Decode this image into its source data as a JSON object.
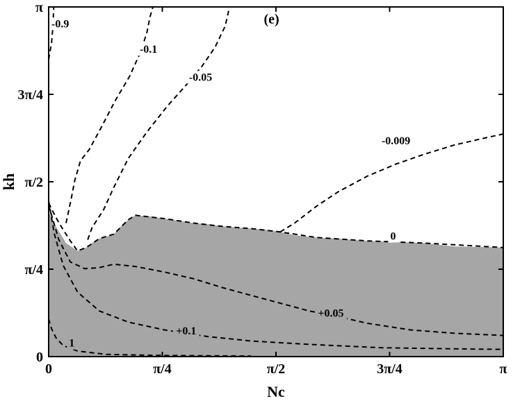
{
  "chart_data": {
    "type": "contour",
    "panel_label": "(e)",
    "xlabel": "Nc",
    "ylabel": "kh",
    "xlim": [
      0,
      3.14159
    ],
    "ylim": [
      0,
      3.14159
    ],
    "x_ticks": [
      {
        "value": 0,
        "label": "0"
      },
      {
        "value": 0.7854,
        "label": "π/4"
      },
      {
        "value": 1.5708,
        "label": "π/2"
      },
      {
        "value": 2.3562,
        "label": "3π/4"
      },
      {
        "value": 3.14159,
        "label": "π"
      }
    ],
    "y_ticks": [
      {
        "value": 0,
        "label": "0"
      },
      {
        "value": 0.7854,
        "label": "π/4"
      },
      {
        "value": 1.5708,
        "label": "π/2"
      },
      {
        "value": 2.3562,
        "label": "3π/4"
      },
      {
        "value": 3.14159,
        "label": "π"
      }
    ],
    "colors": {
      "region_fill": "#a6a6a6",
      "contour": "#000000",
      "background": "#ffffff"
    },
    "region": {
      "boundary": [
        [
          0.0,
          1.3
        ],
        [
          0.05,
          1.17
        ],
        [
          0.12,
          1.02
        ],
        [
          0.2,
          0.95
        ],
        [
          0.26,
          0.98
        ],
        [
          0.3,
          1.02
        ],
        [
          0.35,
          1.06
        ],
        [
          0.4,
          1.08
        ],
        [
          0.45,
          1.1
        ],
        [
          0.5,
          1.17
        ],
        [
          0.55,
          1.23
        ],
        [
          0.6,
          1.27
        ],
        [
          0.7,
          1.26
        ],
        [
          0.8,
          1.24
        ],
        [
          0.9,
          1.22
        ],
        [
          1.0,
          1.2
        ],
        [
          1.1,
          1.19
        ],
        [
          1.2,
          1.17
        ],
        [
          1.3,
          1.16
        ],
        [
          1.4,
          1.15
        ],
        [
          1.5,
          1.14
        ],
        [
          1.6,
          1.12
        ],
        [
          1.7,
          1.09
        ],
        [
          1.85,
          1.07
        ],
        [
          2.0,
          1.06
        ],
        [
          2.2,
          1.04
        ],
        [
          2.4,
          1.03
        ],
        [
          2.6,
          1.02
        ],
        [
          2.8,
          0.99
        ],
        [
          3.14159,
          0.98
        ]
      ]
    },
    "contours": [
      {
        "label": "-0.9",
        "label_at": [
          0.08,
          2.99
        ],
        "points": [
          [
            0.0,
            2.67
          ],
          [
            0.02,
            2.82
          ],
          [
            0.03,
            2.97
          ],
          [
            0.035,
            3.14159
          ]
        ]
      },
      {
        "label": "-0.1",
        "label_at": [
          0.69,
          2.76
        ],
        "points": [
          [
            0.12,
            1.2
          ],
          [
            0.15,
            1.38
          ],
          [
            0.18,
            1.58
          ],
          [
            0.22,
            1.76
          ],
          [
            0.28,
            1.86
          ],
          [
            0.36,
            2.05
          ],
          [
            0.46,
            2.3
          ],
          [
            0.56,
            2.52
          ],
          [
            0.64,
            2.75
          ],
          [
            0.68,
            2.92
          ],
          [
            0.7,
            3.05
          ],
          [
            0.72,
            3.14159
          ]
        ]
      },
      {
        "label": "-0.05",
        "label_at": [
          1.05,
          2.51
        ],
        "points": [
          [
            0.27,
            1.05
          ],
          [
            0.3,
            1.16
          ],
          [
            0.38,
            1.32
          ],
          [
            0.45,
            1.52
          ],
          [
            0.55,
            1.78
          ],
          [
            0.68,
            2.02
          ],
          [
            0.82,
            2.25
          ],
          [
            0.95,
            2.44
          ],
          [
            1.06,
            2.61
          ],
          [
            1.15,
            2.78
          ],
          [
            1.22,
            2.97
          ],
          [
            1.25,
            3.14159
          ]
        ]
      },
      {
        "label": "-0.009",
        "label_at": [
          2.4,
          1.94
        ],
        "points": [
          [
            1.6,
            1.12
          ],
          [
            1.7,
            1.2
          ],
          [
            1.85,
            1.35
          ],
          [
            2.0,
            1.48
          ],
          [
            2.2,
            1.62
          ],
          [
            2.4,
            1.73
          ],
          [
            2.6,
            1.82
          ],
          [
            2.8,
            1.9
          ],
          [
            3.0,
            1.96
          ],
          [
            3.14159,
            2.0
          ]
        ]
      },
      {
        "label": "0",
        "label_at": [
          2.38,
          1.08
        ],
        "points": [
          [
            0.0,
            1.38
          ],
          [
            0.05,
            1.25
          ],
          [
            0.1,
            1.14
          ],
          [
            0.15,
            1.04
          ],
          [
            0.2,
            0.95
          ],
          [
            0.26,
            0.98
          ],
          [
            0.35,
            1.06
          ],
          [
            0.45,
            1.1
          ],
          [
            0.55,
            1.23
          ],
          [
            0.6,
            1.27
          ],
          [
            0.8,
            1.24
          ],
          [
            1.0,
            1.2
          ],
          [
            1.2,
            1.17
          ],
          [
            1.4,
            1.15
          ],
          [
            1.6,
            1.12
          ],
          [
            1.85,
            1.07
          ],
          [
            2.2,
            1.04
          ],
          [
            2.6,
            1.02
          ],
          [
            3.14159,
            0.98
          ]
        ]
      },
      {
        "label": "+0.05",
        "label_at": [
          1.95,
          0.39
        ],
        "points": [
          [
            0.0,
            1.36
          ],
          [
            0.07,
            1.05
          ],
          [
            0.15,
            0.85
          ],
          [
            0.25,
            0.79
          ],
          [
            0.35,
            0.8
          ],
          [
            0.45,
            0.83
          ],
          [
            0.6,
            0.81
          ],
          [
            0.8,
            0.76
          ],
          [
            1.0,
            0.7
          ],
          [
            1.2,
            0.62
          ],
          [
            1.4,
            0.55
          ],
          [
            1.6,
            0.48
          ],
          [
            1.8,
            0.41
          ],
          [
            2.0,
            0.36
          ],
          [
            2.2,
            0.3
          ],
          [
            2.5,
            0.24
          ],
          [
            2.8,
            0.21
          ],
          [
            3.14159,
            0.19
          ]
        ]
      },
      {
        "label": "+0.1",
        "label_at": [
          0.95,
          0.23
        ],
        "points": [
          [
            0.0,
            1.4
          ],
          [
            0.04,
            1.1
          ],
          [
            0.1,
            0.82
          ],
          [
            0.2,
            0.58
          ],
          [
            0.35,
            0.41
          ],
          [
            0.55,
            0.31
          ],
          [
            0.8,
            0.24
          ],
          [
            1.1,
            0.18
          ],
          [
            1.4,
            0.14
          ],
          [
            1.8,
            0.11
          ],
          [
            2.3,
            0.08
          ],
          [
            2.8,
            0.07
          ],
          [
            3.14159,
            0.065
          ]
        ]
      },
      {
        "label": "1",
        "label_at": [
          0.16,
          0.12
        ],
        "points": [
          [
            0.0,
            0.34
          ],
          [
            0.02,
            0.25
          ],
          [
            0.05,
            0.17
          ],
          [
            0.1,
            0.1
          ],
          [
            0.2,
            0.05
          ],
          [
            0.4,
            0.02
          ],
          [
            0.8,
            0.01
          ],
          [
            1.4,
            0.005
          ]
        ]
      }
    ]
  }
}
